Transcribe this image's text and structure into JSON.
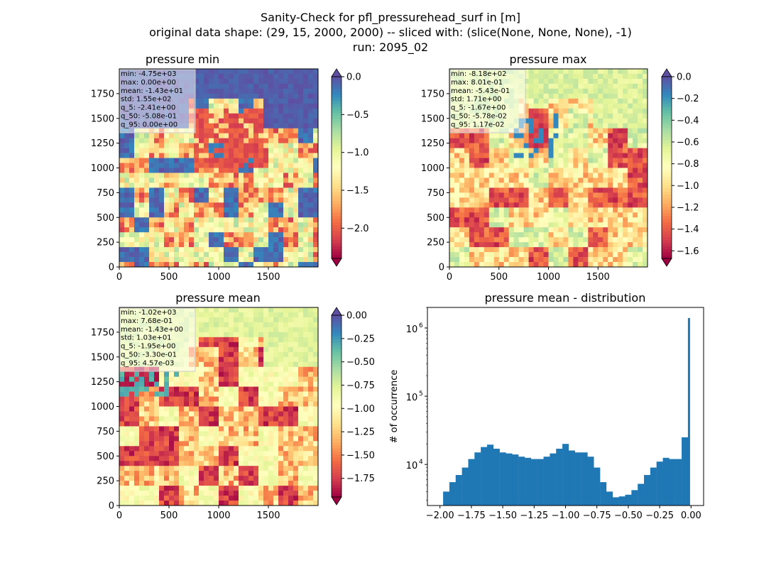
{
  "suptitle": {
    "line1": "Sanity-Check for pfl_pressurehead_surf in [m]",
    "line2": "original data shape: (29, 15, 2000, 2000) -- sliced with: (slice(None, None, None), -1)",
    "line3": "run: 2095_02"
  },
  "colors": {
    "spectral": [
      "#9e0142",
      "#d53e4f",
      "#f46d43",
      "#fdae61",
      "#fee08b",
      "#ffffbf",
      "#e6f598",
      "#abdda4",
      "#66c2a5",
      "#3288bd",
      "#5e4fa2"
    ],
    "hist_bar": "#1f77b4"
  },
  "chart_data": [
    {
      "type": "heatmap",
      "title": "pressure min",
      "x_ticks": [
        "0",
        "500",
        "1000",
        "1500"
      ],
      "y_ticks": [
        "0",
        "250",
        "500",
        "750",
        "1000",
        "1250",
        "1500",
        "1750"
      ],
      "xlim": [
        0,
        2000
      ],
      "ylim": [
        0,
        2000
      ],
      "colorbar": {
        "min": -2.4,
        "max": 0.0,
        "extend": "both",
        "ticks": [
          "0.0",
          "−0.5",
          "−1.0",
          "−1.5",
          "−2.0"
        ],
        "tick_values": [
          0.0,
          -0.5,
          -1.0,
          -1.5,
          -2.0
        ]
      },
      "stats": [
        "min: -4.75e+03",
        "max: 0.00e+00",
        "mean: -1.43e+01",
        "std: 1.55e+02",
        "q_5: -2.41e+00",
        "q_50: -5.08e-01",
        "q_95: 0.00e+00"
      ]
    },
    {
      "type": "heatmap",
      "title": "pressure max",
      "x_ticks": [
        "0",
        "500",
        "1000",
        "1500"
      ],
      "y_ticks": [
        "0",
        "250",
        "500",
        "750",
        "1000",
        "1250",
        "1500",
        "1750"
      ],
      "xlim": [
        0,
        2000
      ],
      "ylim": [
        0,
        2000
      ],
      "colorbar": {
        "min": -1.67,
        "max": 0.0,
        "extend": "both",
        "ticks": [
          "0.0",
          "−0.2",
          "−0.4",
          "−0.6",
          "−0.8",
          "−1.0",
          "−1.2",
          "−1.4",
          "−1.6"
        ],
        "tick_values": [
          0.0,
          -0.2,
          -0.4,
          -0.6,
          -0.8,
          -1.0,
          -1.2,
          -1.4,
          -1.6
        ]
      },
      "stats": [
        "min: -8.18e+02",
        "max: 8.01e-01",
        "mean: -5.43e-01",
        "std: 1.71e+00",
        "q_5: -1.67e+00",
        "q_50: -5.78e-02",
        "q_95: 1.17e-02"
      ]
    },
    {
      "type": "heatmap",
      "title": "pressure mean",
      "x_ticks": [
        "0",
        "500",
        "1000",
        "1500"
      ],
      "y_ticks": [
        "0",
        "250",
        "500",
        "750",
        "1000",
        "1250",
        "1500",
        "1750"
      ],
      "xlim": [
        0,
        2000
      ],
      "ylim": [
        0,
        2000
      ],
      "colorbar": {
        "min": -1.95,
        "max": 0.0,
        "extend": "both",
        "ticks": [
          "0.00",
          "−0.25",
          "−0.50",
          "−0.75",
          "−1.00",
          "−1.25",
          "−1.50",
          "−1.75"
        ],
        "tick_values": [
          0.0,
          -0.25,
          -0.5,
          -0.75,
          -1.0,
          -1.25,
          -1.5,
          -1.75
        ]
      },
      "stats": [
        "min: -1.02e+03",
        "max: 7.68e-01",
        "mean: -1.43e+00",
        "std: 1.03e+01",
        "q_5: -1.95e+00",
        "q_50: -3.30e-01",
        "q_95: 4.57e-03"
      ]
    },
    {
      "type": "bar",
      "title": "pressure mean - distribution",
      "ylabel": "# of occurrence",
      "yscale": "log",
      "xlim": [
        -2.1,
        0.1
      ],
      "ylim": [
        2500,
        2000000
      ],
      "x_ticks": [
        "−2.00",
        "−1.75",
        "−1.50",
        "−1.25",
        "−1.00",
        "−0.75",
        "−0.50",
        "−0.25",
        "0.00"
      ],
      "x_tick_values": [
        -2.0,
        -1.75,
        -1.5,
        -1.25,
        -1.0,
        -0.75,
        -0.5,
        -0.25,
        0.0
      ],
      "y_ticks": [
        {
          "base": "10",
          "exp": "4",
          "value": 10000
        },
        {
          "base": "10",
          "exp": "5",
          "value": 100000
        },
        {
          "base": "10",
          "exp": "6",
          "value": 1000000
        }
      ],
      "bin_width": 0.0098,
      "x": [
        -1.95,
        -1.9,
        -1.85,
        -1.8,
        -1.75,
        -1.7,
        -1.65,
        -1.6,
        -1.55,
        -1.5,
        -1.45,
        -1.4,
        -1.35,
        -1.3,
        -1.25,
        -1.2,
        -1.15,
        -1.1,
        -1.05,
        -1.0,
        -0.95,
        -0.9,
        -0.85,
        -0.8,
        -0.75,
        -0.7,
        -0.65,
        -0.6,
        -0.55,
        -0.5,
        -0.45,
        -0.4,
        -0.35,
        -0.3,
        -0.25,
        -0.2,
        -0.15,
        -0.1,
        -0.05,
        0.0
      ],
      "values": [
        4000,
        5500,
        7000,
        9000,
        12000,
        15000,
        18000,
        19500,
        17000,
        15000,
        14500,
        14000,
        13000,
        12500,
        12000,
        12000,
        13000,
        14500,
        17000,
        20000,
        16000,
        15000,
        15000,
        13000,
        9000,
        5500,
        4000,
        3300,
        3400,
        3600,
        4200,
        5200,
        7000,
        9000,
        11000,
        12500,
        12000,
        12000,
        25000,
        1400000
      ]
    }
  ]
}
